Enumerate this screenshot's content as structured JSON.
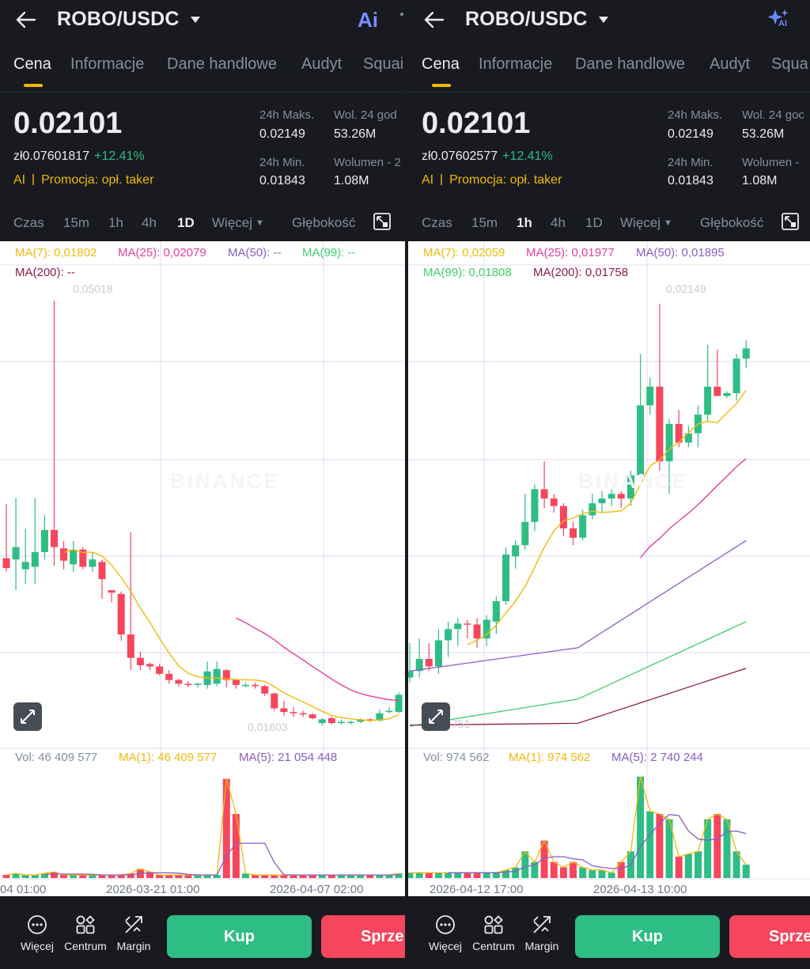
{
  "panels": [
    {
      "header": {
        "pair": "ROBO/USDC",
        "ai_label": "Ai"
      },
      "tabs": [
        "Cena",
        "Informacje",
        "Dane handlowe",
        "Audyt",
        "Squai"
      ],
      "price": {
        "last": "0.02101",
        "fiat": "zł0.07601817",
        "change": "+12.41%"
      },
      "promo": {
        "ai": "AI",
        "text": "Promocja: opł. taker"
      },
      "stats": {
        "high_label": "24h Maks.",
        "high_value": "0.02149",
        "low_label": "24h Min.",
        "low_value": "0.01843",
        "vol_label": "Wol. 24 god",
        "vol_value": "53.26M",
        "vol2_label": "Wolumen - 2",
        "vol2_value": "1.08M"
      },
      "intervals": {
        "time": "Czas",
        "m15": "15m",
        "h1": "1h",
        "h4": "4h",
        "d1": "1D",
        "more": "Więcej",
        "depth": "Głębokość",
        "active": "1D"
      },
      "ma_legend": {
        "ma7": "MA(7): 0,01802",
        "ma25": "MA(25): 0,02079",
        "ma50": "MA(50): --",
        "ma99": "MA(99): --",
        "ma200": "MA(200): --"
      },
      "price_notes": {
        "high": "0,05018",
        "low": "0,01603"
      },
      "watermark": "BINANCE",
      "volume_legend": {
        "vol": "Vol: 46 409 577",
        "ma1": "MA(1): 46 409 577",
        "ma5": "MA(5): 21 054 448"
      },
      "time_labels": [
        "04 01:00",
        "2026-03-21 01:00",
        "2026-04-07 02:00"
      ],
      "bottom": {
        "more": "Więcej",
        "center": "Centrum",
        "margin": "Margin",
        "buy": "Kup",
        "sell": "Sprze"
      },
      "chart_data": {
        "type": "candlestick",
        "interval": "1D",
        "y_range": [
          0.015,
          0.051
        ],
        "candles": [
          {
            "o": 0.0291,
            "c": 0.0283,
            "h": 0.0335,
            "l": 0.028
          },
          {
            "o": 0.029,
            "c": 0.03,
            "h": 0.034,
            "l": 0.0265
          },
          {
            "o": 0.0282,
            "c": 0.0288,
            "h": 0.0315,
            "l": 0.027
          },
          {
            "o": 0.0284,
            "c": 0.0296,
            "h": 0.034,
            "l": 0.027
          },
          {
            "o": 0.0296,
            "c": 0.0314,
            "h": 0.0326,
            "l": 0.029
          },
          {
            "o": 0.0314,
            "c": 0.03,
            "h": 0.05,
            "l": 0.0285
          },
          {
            "o": 0.0299,
            "c": 0.0289,
            "h": 0.0305,
            "l": 0.0282
          },
          {
            "o": 0.0286,
            "c": 0.0298,
            "h": 0.0305,
            "l": 0.028
          },
          {
            "o": 0.0298,
            "c": 0.0284,
            "h": 0.03,
            "l": 0.0282
          },
          {
            "o": 0.0284,
            "c": 0.029,
            "h": 0.0296,
            "l": 0.028
          },
          {
            "o": 0.0288,
            "c": 0.0274,
            "h": 0.029,
            "l": 0.0258
          },
          {
            "o": 0.0265,
            "c": 0.0263,
            "h": 0.0265,
            "l": 0.0255
          },
          {
            "o": 0.0262,
            "c": 0.0229,
            "h": 0.0264,
            "l": 0.0224
          },
          {
            "o": 0.0229,
            "c": 0.021,
            "h": 0.0312,
            "l": 0.02
          },
          {
            "o": 0.021,
            "c": 0.0204,
            "h": 0.0215,
            "l": 0.02
          },
          {
            "o": 0.0205,
            "c": 0.0203,
            "h": 0.0206,
            "l": 0.02
          },
          {
            "o": 0.0203,
            "c": 0.0197,
            "h": 0.0205,
            "l": 0.0196
          },
          {
            "o": 0.0197,
            "c": 0.0192,
            "h": 0.02,
            "l": 0.0189
          },
          {
            "o": 0.0192,
            "c": 0.0189,
            "h": 0.0193,
            "l": 0.0187
          },
          {
            "o": 0.0189,
            "c": 0.0188,
            "h": 0.0191,
            "l": 0.0186
          },
          {
            "o": 0.0188,
            "c": 0.0189,
            "h": 0.019,
            "l": 0.0186
          },
          {
            "o": 0.0188,
            "c": 0.0199,
            "h": 0.0207,
            "l": 0.0185
          },
          {
            "o": 0.0189,
            "c": 0.0201,
            "h": 0.0207,
            "l": 0.0187
          },
          {
            "o": 0.02,
            "c": 0.0192,
            "h": 0.0201,
            "l": 0.0186
          },
          {
            "o": 0.0192,
            "c": 0.0188,
            "h": 0.0193,
            "l": 0.0185
          },
          {
            "o": 0.0188,
            "c": 0.0188,
            "h": 0.019,
            "l": 0.0186
          },
          {
            "o": 0.0188,
            "c": 0.0187,
            "h": 0.019,
            "l": 0.0185
          },
          {
            "o": 0.0187,
            "c": 0.0181,
            "h": 0.0188,
            "l": 0.0179
          },
          {
            "o": 0.0181,
            "c": 0.0169,
            "h": 0.0182,
            "l": 0.0167
          },
          {
            "o": 0.0169,
            "c": 0.0166,
            "h": 0.0175,
            "l": 0.0163
          },
          {
            "o": 0.0166,
            "c": 0.0165,
            "h": 0.017,
            "l": 0.0162
          },
          {
            "o": 0.0165,
            "c": 0.0164,
            "h": 0.0167,
            "l": 0.0162
          },
          {
            "o": 0.0164,
            "c": 0.0161,
            "h": 0.0165,
            "l": 0.016
          },
          {
            "o": 0.0157,
            "c": 0.016,
            "h": 0.0161,
            "l": 0.0155
          },
          {
            "o": 0.0161,
            "c": 0.0157,
            "h": 0.0162,
            "l": 0.0156
          },
          {
            "o": 0.0158,
            "c": 0.0158,
            "h": 0.016,
            "l": 0.0156
          },
          {
            "o": 0.0158,
            "c": 0.0158,
            "h": 0.0159,
            "l": 0.0156
          },
          {
            "o": 0.0158,
            "c": 0.016,
            "h": 0.0161,
            "l": 0.0157
          },
          {
            "o": 0.016,
            "c": 0.0159,
            "h": 0.0161,
            "l": 0.0158
          },
          {
            "o": 0.0159,
            "c": 0.0165,
            "h": 0.0168,
            "l": 0.0158
          },
          {
            "o": 0.0166,
            "c": 0.0167,
            "h": 0.017,
            "l": 0.0165
          },
          {
            "o": 0.0166,
            "c": 0.018,
            "h": 0.0182,
            "l": 0.0165
          }
        ],
        "volume": [
          2,
          3,
          2,
          2,
          3,
          4,
          2,
          2,
          2,
          2,
          2,
          2,
          2,
          3,
          6,
          4,
          2,
          2,
          2,
          2,
          2,
          2,
          2,
          65,
          42,
          3,
          2,
          2,
          2,
          2,
          2,
          2,
          2,
          2,
          2,
          2,
          2,
          2,
          2,
          2,
          2,
          3
        ],
        "volume_max": 70
      }
    },
    {
      "header": {
        "pair": "ROBO/USDC",
        "ai_label": "AI"
      },
      "tabs": [
        "Cena",
        "Informacje",
        "Dane handlowe",
        "Audyt",
        "Squa"
      ],
      "price": {
        "last": "0.02101",
        "fiat": "zł0.07602577",
        "change": "+12.41%"
      },
      "promo": {
        "ai": "AI",
        "text": "Promocja: opł. taker"
      },
      "stats": {
        "high_label": "24h Maks.",
        "high_value": "0.02149",
        "low_label": "24h Min.",
        "low_value": "0.01843",
        "vol_label": "Wol. 24 goc",
        "vol_value": "53.26M",
        "vol2_label": "Wolumen -",
        "vol2_value": "1.08M"
      },
      "intervals": {
        "time": "Czas",
        "m15": "15m",
        "h1": "1h",
        "h4": "4h",
        "d1": "1D",
        "more": "Więcej",
        "depth": "Głębokość",
        "active": "1h"
      },
      "ma_legend": {
        "ma7": "MA(7): 0,02059",
        "ma25": "MA(25): 0,01977",
        "ma50": "MA(50): 0,01895",
        "ma99": "MA(99): 0,01808",
        "ma200": "MA(200): 0,01758"
      },
      "price_notes": {
        "high": "0,02149",
        "low": "751"
      },
      "watermark": "BINANCE",
      "volume_legend": {
        "vol": "Vol: 974 562",
        "ma1": "MA(1): 974 562",
        "ma5": "MA(5): 2 740 244"
      },
      "time_labels": [
        "2026-04-12 17:00",
        "2026-04-13 10:00"
      ],
      "bottom": {
        "more": "Więcej",
        "center": "Centrum",
        "margin": "Margin",
        "buy": "Kup",
        "sell": "Sprze"
      },
      "chart_data": {
        "type": "candlestick",
        "interval": "1h",
        "y_range": [
          0.0169,
          0.02165
        ],
        "candles": [
          {
            "o": 0.01748,
            "c": 0.01755,
            "h": 0.01785,
            "l": 0.01743
          },
          {
            "o": 0.01755,
            "c": 0.01768,
            "h": 0.0179,
            "l": 0.01748
          },
          {
            "o": 0.01768,
            "c": 0.0176,
            "h": 0.01785,
            "l": 0.01755
          },
          {
            "o": 0.0176,
            "c": 0.01788,
            "h": 0.018,
            "l": 0.01752
          },
          {
            "o": 0.01788,
            "c": 0.018,
            "h": 0.01808,
            "l": 0.0177
          },
          {
            "o": 0.018,
            "c": 0.01806,
            "h": 0.01812,
            "l": 0.01782
          },
          {
            "o": 0.01806,
            "c": 0.01805,
            "h": 0.0181,
            "l": 0.0179
          },
          {
            "o": 0.01805,
            "c": 0.0179,
            "h": 0.01812,
            "l": 0.0178
          },
          {
            "o": 0.0179,
            "c": 0.0181,
            "h": 0.01815,
            "l": 0.01782
          },
          {
            "o": 0.01808,
            "c": 0.0183,
            "h": 0.01835,
            "l": 0.01795
          },
          {
            "o": 0.0183,
            "c": 0.0188,
            "h": 0.01888,
            "l": 0.01826
          },
          {
            "o": 0.01878,
            "c": 0.0189,
            "h": 0.01895,
            "l": 0.01865
          },
          {
            "o": 0.0189,
            "c": 0.01915,
            "h": 0.01945,
            "l": 0.01885
          },
          {
            "o": 0.01915,
            "c": 0.0195,
            "h": 0.01955,
            "l": 0.01905
          },
          {
            "o": 0.0195,
            "c": 0.0194,
            "h": 0.0198,
            "l": 0.0193
          },
          {
            "o": 0.0194,
            "c": 0.01932,
            "h": 0.01945,
            "l": 0.01925
          },
          {
            "o": 0.01932,
            "c": 0.01908,
            "h": 0.01935,
            "l": 0.019
          },
          {
            "o": 0.01908,
            "c": 0.01898,
            "h": 0.01915,
            "l": 0.0189
          },
          {
            "o": 0.01898,
            "c": 0.01922,
            "h": 0.01928,
            "l": 0.01895
          },
          {
            "o": 0.01922,
            "c": 0.01935,
            "h": 0.01945,
            "l": 0.01918
          },
          {
            "o": 0.01935,
            "c": 0.0194,
            "h": 0.01948,
            "l": 0.01925
          },
          {
            "o": 0.0194,
            "c": 0.01945,
            "h": 0.0195,
            "l": 0.01932
          },
          {
            "o": 0.01945,
            "c": 0.0194,
            "h": 0.01948,
            "l": 0.0193
          },
          {
            "o": 0.0194,
            "c": 0.01965,
            "h": 0.0197,
            "l": 0.01932
          },
          {
            "o": 0.01965,
            "c": 0.0204,
            "h": 0.02095,
            "l": 0.0196
          },
          {
            "o": 0.0204,
            "c": 0.0206,
            "h": 0.0207,
            "l": 0.0203
          },
          {
            "o": 0.0206,
            "c": 0.0198,
            "h": 0.02149,
            "l": 0.0197
          },
          {
            "o": 0.0198,
            "c": 0.0202,
            "h": 0.02025,
            "l": 0.01945
          },
          {
            "o": 0.0202,
            "c": 0.02,
            "h": 0.02035,
            "l": 0.01995
          },
          {
            "o": 0.02,
            "c": 0.0201,
            "h": 0.02018,
            "l": 0.01995
          },
          {
            "o": 0.0201,
            "c": 0.0203,
            "h": 0.0204,
            "l": 0.01995
          },
          {
            "o": 0.0203,
            "c": 0.0206,
            "h": 0.02105,
            "l": 0.02022
          },
          {
            "o": 0.0206,
            "c": 0.0205,
            "h": 0.021,
            "l": 0.0205
          },
          {
            "o": 0.0205,
            "c": 0.02053,
            "h": 0.02055,
            "l": 0.02048
          },
          {
            "o": 0.02053,
            "c": 0.0209,
            "h": 0.02095,
            "l": 0.02045
          },
          {
            "o": 0.0209,
            "c": 0.02101,
            "h": 0.0211,
            "l": 0.0208
          }
        ],
        "volume": [
          2,
          2,
          2,
          2,
          2,
          2,
          2,
          2,
          2,
          2,
          3,
          4,
          10,
          6,
          14,
          6,
          4,
          6,
          4,
          3,
          3,
          2,
          6,
          10,
          38,
          25,
          24,
          22,
          8,
          9,
          10,
          22,
          24,
          22,
          10,
          5
        ],
        "volume_max": 40
      }
    }
  ]
}
